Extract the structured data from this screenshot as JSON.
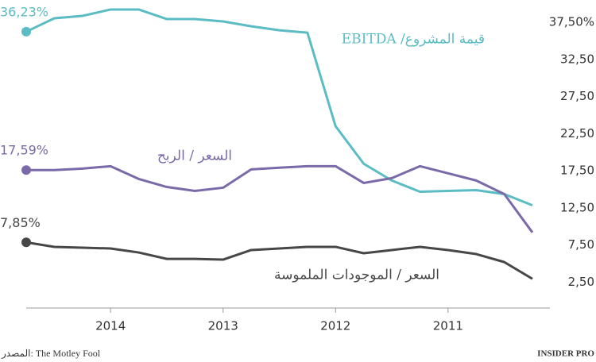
{
  "chart_data": {
    "type": "line",
    "categories": [
      null,
      null,
      null,
      "2014",
      null,
      null,
      null,
      "2013",
      null,
      null,
      null,
      "2012",
      null,
      null,
      null,
      "2011",
      null,
      null,
      null
    ],
    "series": [
      {
        "name": "قيمة المشروع/ EBITDA",
        "color": "#5bbcc4",
        "values": [
          36.23,
          38.04,
          38.36,
          39.22,
          39.22,
          37.93,
          37.93,
          37.61,
          36.96,
          36.42,
          36.1,
          23.5,
          18.44,
          16.18,
          14.67,
          14.78,
          14.88,
          14.35,
          12.84
        ],
        "value_labels": [
          "36,23%",
          null,
          null,
          null,
          null,
          null,
          null,
          null,
          null,
          null,
          null,
          null,
          null,
          null,
          null,
          null,
          null,
          null,
          null
        ]
      },
      {
        "name": "السعر / الربح",
        "color": "#7b6aa8",
        "values": [
          17.59,
          17.58,
          17.79,
          18.11,
          16.39,
          15.31,
          14.78,
          15.21,
          17.68,
          17.9,
          18.11,
          18.11,
          15.85,
          16.5,
          18.11,
          17.15,
          16.18,
          14.35,
          9.18
        ],
        "value_labels": [
          "17,59%",
          null,
          null,
          null,
          null,
          null,
          null,
          null,
          null,
          null,
          null,
          null,
          null,
          null,
          null,
          null,
          null,
          null,
          null
        ]
      },
      {
        "name": "السعر / الموجودات الملموسة",
        "color": "#474747",
        "values": [
          7.85,
          7.24,
          7.13,
          7.02,
          6.48,
          5.62,
          5.62,
          5.52,
          6.81,
          7.02,
          7.24,
          7.24,
          6.38,
          6.81,
          7.24,
          6.81,
          6.27,
          5.19,
          2.93
        ],
        "value_labels": [
          "7,85%",
          null,
          null,
          null,
          null,
          null,
          null,
          null,
          null,
          null,
          null,
          null,
          null,
          null,
          null,
          null,
          null,
          null,
          null
        ]
      }
    ],
    "ylim": [
      -1,
      40.5
    ],
    "yticks": [
      {
        "value": 2.5,
        "label": "2,50"
      },
      {
        "value": 7.5,
        "label": "7,50"
      },
      {
        "value": 12.5,
        "label": "12,50"
      },
      {
        "value": 17.5,
        "label": "17,50"
      },
      {
        "value": 22.5,
        "label": "22,50"
      },
      {
        "value": 27.5,
        "label": "27,50"
      },
      {
        "value": 32.5,
        "label": "32,50"
      },
      {
        "value": 37.5,
        "label": "37,50%"
      }
    ],
    "y_axis_side": "right",
    "grid": false,
    "source": "المصدر: The Motley Fool",
    "brand": "INSIDER PRO"
  }
}
